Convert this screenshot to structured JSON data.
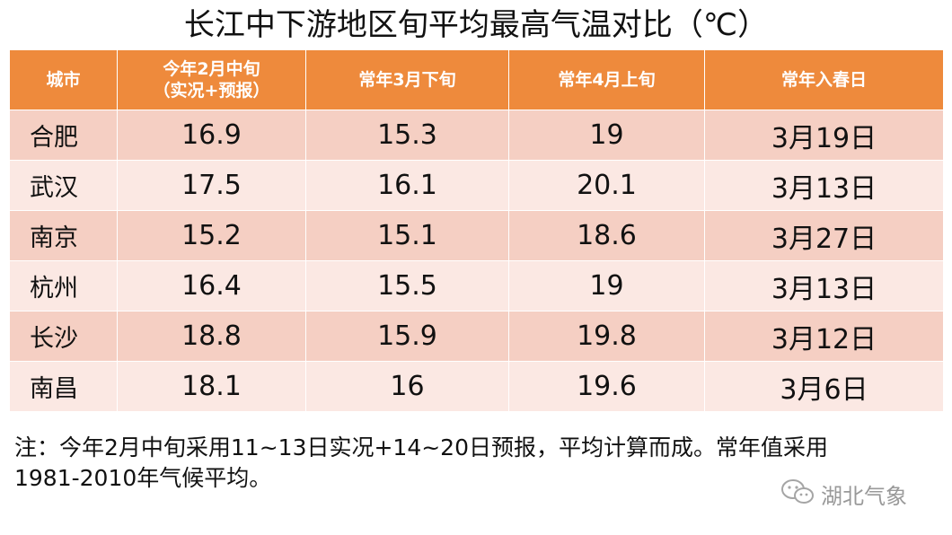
{
  "title": "长江中下游地区旬平均最高气温对比（℃）",
  "table": {
    "headers": [
      "城市",
      "今年2月中旬\n（实况+预报）",
      "常年3月下旬",
      "常年4月上旬",
      "常年入春日"
    ],
    "rows": [
      [
        "合肥",
        "16.9",
        "15.3",
        "19",
        "3月19日"
      ],
      [
        "武汉",
        "17.5",
        "16.1",
        "20.1",
        "3月13日"
      ],
      [
        "南京",
        "15.2",
        "15.1",
        "18.6",
        "3月27日"
      ],
      [
        "杭州",
        "16.4",
        "15.5",
        "19",
        "3月13日"
      ],
      [
        "长沙",
        "18.8",
        "15.9",
        "19.8",
        "3月12日"
      ],
      [
        "南昌",
        "18.1",
        "16",
        "19.6",
        "3月6日"
      ]
    ]
  },
  "note": {
    "line1": "注：今年2月中旬采用11~13日实况+14~20日预报，平均计算而成。常年值采用",
    "line2": "1981-2010年气候平均。"
  },
  "watermark": {
    "text": "湖北气象",
    "icon": "wechat-icon"
  },
  "colors": {
    "header_bg": "#ee8a3c",
    "row_dark": "#f5cfc3",
    "row_light": "#fbe8e3"
  }
}
